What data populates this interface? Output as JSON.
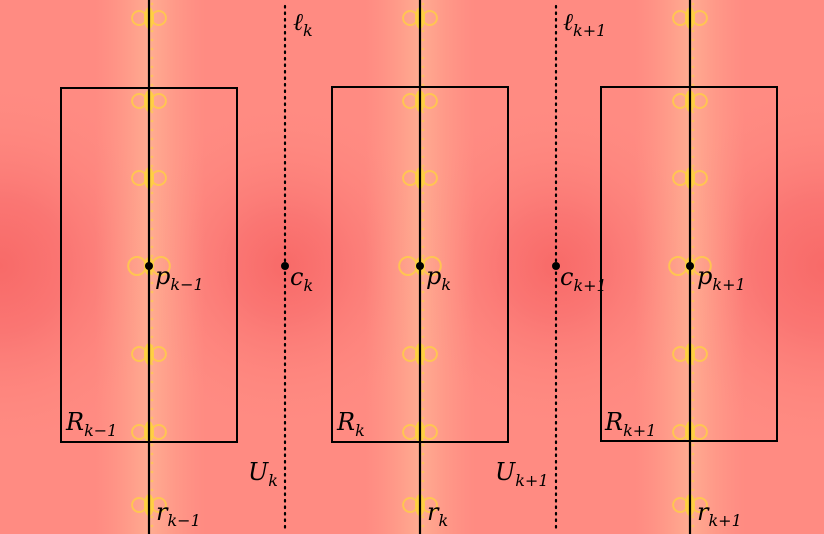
{
  "diagram": {
    "background_color": "#ff8a80",
    "fractal_color": "#ffd23f",
    "labels": {
      "l_k": {
        "base": "ℓ",
        "sub": "k"
      },
      "l_k1": {
        "base": "ℓ",
        "sub": "k+1"
      },
      "p_km1": {
        "base": "p",
        "sub": "k−1"
      },
      "p_k": {
        "base": "p",
        "sub": "k"
      },
      "p_k1": {
        "base": "p",
        "sub": "k+1"
      },
      "c_k": {
        "base": "c",
        "sub": "k"
      },
      "c_k1": {
        "base": "c",
        "sub": "k+1"
      },
      "R_km1": {
        "base": "R",
        "sub": "k−1"
      },
      "R_k": {
        "base": "R",
        "sub": "k"
      },
      "R_k1": {
        "base": "R",
        "sub": "k+1"
      },
      "U_k": {
        "base": "U",
        "sub": "k"
      },
      "U_k1": {
        "base": "U",
        "sub": "k+1"
      },
      "r_km1": {
        "base": "r",
        "sub": "k−1"
      },
      "r_k": {
        "base": "r",
        "sub": "k"
      },
      "r_k1": {
        "base": "r",
        "sub": "k+1"
      }
    }
  }
}
